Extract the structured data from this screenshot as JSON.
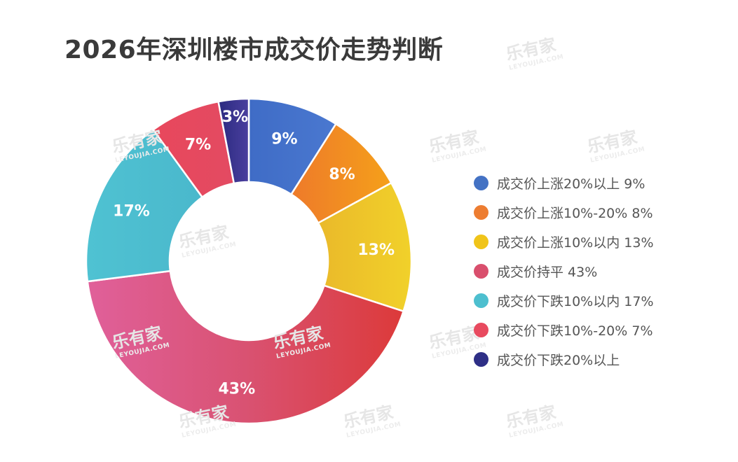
{
  "title": "2026年深圳楼市成交价走势判断",
  "watermark": "乐有家",
  "chart_data": {
    "type": "pie",
    "variant": "donut",
    "title": "2026年深圳楼市成交价走势判断",
    "start_angle": "12 o'clock, clockwise",
    "legend_position": "right",
    "slices": [
      {
        "label": "成交价上涨20%以上",
        "value": 9,
        "display": "9%",
        "color": "#4472c4",
        "legend": "成交价上涨20%以上 9%"
      },
      {
        "label": "成交价上涨10%-20%",
        "value": 8,
        "display": "8%",
        "color": "#ed7d31",
        "legend": "成交价上涨10%-20% 8%"
      },
      {
        "label": "成交价上涨10%以内",
        "value": 13,
        "display": "13%",
        "color": "#f0c419",
        "legend": "成交价上涨10%以内 13%"
      },
      {
        "label": "成交价持平",
        "value": 43,
        "display": "43%",
        "color": "#d94f6d",
        "legend": "成交价持平 43%"
      },
      {
        "label": "成交价下跌10%以内",
        "value": 17,
        "display": "17%",
        "color": "#4dbfcf",
        "legend": "成交价下跌10%以内 17%"
      },
      {
        "label": "成交价下跌10%-20%",
        "value": 7,
        "display": "7%",
        "color": "#e84a5f",
        "legend": "成交价下跌10%-20% 7%"
      },
      {
        "label": "成交价下跌20%以上",
        "value": 3,
        "display": "3%",
        "color": "#2e2f86",
        "legend": "成交价下跌20%以上"
      }
    ]
  }
}
